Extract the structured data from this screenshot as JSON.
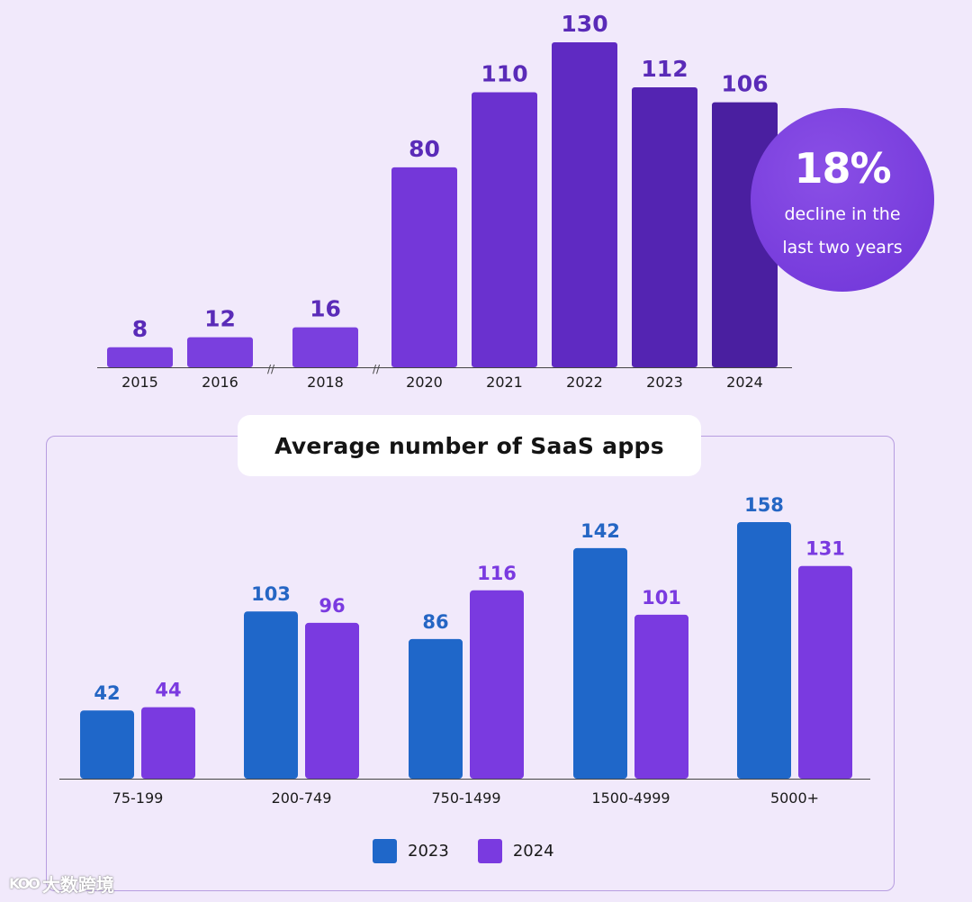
{
  "chart_data": [
    {
      "type": "bar",
      "categories": [
        "2015",
        "2016",
        "2018",
        "2020",
        "2021",
        "2022",
        "2023",
        "2024"
      ],
      "values": [
        8,
        12,
        16,
        80,
        110,
        130,
        112,
        106
      ],
      "axis_breaks": [
        "//",
        "//"
      ],
      "ylim": [
        0,
        130
      ],
      "grid": false,
      "colors": [
        "#7a3fde",
        "#7a3fde",
        "#7a3fde",
        "#7437d9",
        "#6a31cf",
        "#5f2ac2",
        "#5424b2",
        "#4a1fa0"
      ],
      "annotation": {
        "value": "18%",
        "text_line1": "decline in the",
        "text_line2": "last two years"
      }
    },
    {
      "type": "bar",
      "title": "Average number of SaaS apps",
      "categories": [
        "75-199",
        "200-749",
        "750-1499",
        "1500-4999",
        "5000+"
      ],
      "series": [
        {
          "name": "2023",
          "values": [
            42,
            103,
            86,
            142,
            158
          ],
          "color": "#1f67c9"
        },
        {
          "name": "2024",
          "values": [
            44,
            96,
            116,
            101,
            131
          ],
          "color": "#7a3ae0"
        }
      ],
      "ylim": [
        0,
        158
      ],
      "grid": false,
      "legend": "bottom"
    }
  ],
  "watermark": {
    "logo": "KOO",
    "text": "大数跨境"
  }
}
